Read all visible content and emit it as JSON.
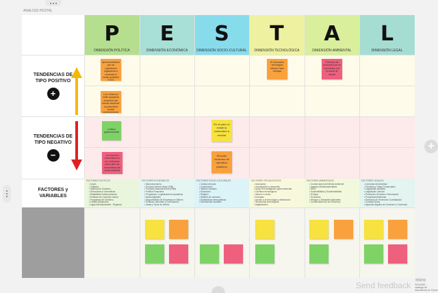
{
  "board": {
    "title": "ANALISIS PESTAL"
  },
  "columns": [
    {
      "letter": "P",
      "dimension": "DIMENSIÓN POLÍTICA",
      "color": "#b5df8f",
      "bg": "#e9f6dd"
    },
    {
      "letter": "E",
      "dimension": "DIMENSIÓN ECONÓMICA",
      "color": "#a8dfd6",
      "bg": "#e4f5f2"
    },
    {
      "letter": "S",
      "dimension": "DIMENSIÓN SOCIO-CULTURAL",
      "color": "#87dcec",
      "bg": "#dcf3f8"
    },
    {
      "letter": "T",
      "dimension": "DIMENSIÓN TECNOLÓGICA",
      "color": "#eef2a0",
      "bg": "#f8f9dc"
    },
    {
      "letter": "A",
      "dimension": "DIMENSIÓN AMBIENTAL",
      "color": "#d9ef9c",
      "bg": "#f1f8dc"
    },
    {
      "letter": "L",
      "dimension": "DIMENSIÓN LEGAL",
      "color": "#a6ddd3",
      "bg": "#e3f4f1"
    }
  ],
  "rows": {
    "positive": {
      "label": "TENDENCIAS DE TIPO POSITIVO",
      "symbol": "+"
    },
    "negative": {
      "label": "TENDENCIAS DE TIPO NEGATIVO",
      "symbol": "−"
    },
    "factors": {
      "label": "FACTORES y VARIABLES"
    }
  },
  "notes": {
    "p1": "Aprovechamiento que los organismos reguladores a conservar el medio ambiente (CEG)",
    "p2": "Los Gobiernos están apoyando proyectos que buscan favorecer a productores locales implementando acciones",
    "t1": "El innovación tecnológica siempre hace ventajas",
    "a1": "El terreno de producción se ha encontrado con la suerte de reciclar",
    "pn1": "Lentitud gubernamental",
    "pn2": "Los recursos económicos no son suficientes para cubrir las necesidades del medio ambiente",
    "s1": "En el país no existe la costumbre a reciclar",
    "s2": "Elevado consumo de utensilios plásticos"
  },
  "factors": [
    {
      "title": "FACTORES POLÍTICOS",
      "items": [
        "Leyes",
        "Tratados",
        "Sistema de Gobierno",
        "Direcciones e Normativas",
        "Estabilidad Gubernamental",
        "Políticas de Comercio Actual",
        "Programas de Gobierno",
        "Límites Aduaneros",
        "Ligas Internacionales - Regional"
      ]
    },
    {
      "title": "FACTORES ECONÓMICOS",
      "items": [
        "Macroeconomía",
        "Producto Interno Bruto (PIB)",
        "Producto Nacional Bruto (PNB)",
        "Política Financiera",
        "Programas / Legislaciones impositivas",
        "Nacionalidades",
        "Disponibilidad de Empresas en Bienes",
        "Políticas Laborales y Contratación",
        "Tasas y Tipos de Interés"
      ]
    },
    {
      "title": "FACTORES SOCIO-CULTURALES",
      "items": [
        "Cultura del país",
        "Costumbres",
        "Valores Sociales",
        "Educación",
        "Religión",
        "Hábitos de consumo",
        "Estadísticas demográficas",
        "Movimientos sociales"
      ]
    },
    {
      "title": "FACTORES TECNOLÓGICOS",
      "items": [
        "Innovación",
        "Investigación y desarrollo",
        "Apoyo a Investigación gubernamental",
        "Cambios tecnológicos",
        "Internet e redes",
        "Energías",
        "Acceso a la tecnología y distribución",
        "Tendencias tecnológicas",
        "Digitalización"
      ]
    },
    {
      "title": "FACTORES AMBIENTALES",
      "items": [
        "Conservación del Medio Ambiente",
        "Agentes Medioambientales",
        "ISOS",
        "Sostenibilidad y Sustentabilidad",
        "El Agua",
        "Productos",
        "Riesgos y Desastres Naturales",
        "Conservación de los Recursos"
      ]
    },
    {
      "title": "FACTORES LEGALES",
      "items": [
        "Licencias de Actividad",
        "Permisos y Tasas Comerciales",
        "Legislación sanitaria",
        "Legislación Laboral",
        "Protección de datos e Información",
        "Propiedad Intelectual",
        "Derechos de Protección Contratación",
        "Contrato Anula",
        "Aspectos legales de Comercio e Comercial"
      ]
    }
  ],
  "footer": {
    "feedback": "Send feedback",
    "brand": "miro",
    "info": "DICHADE\ncatálogo 60\nlaboratorios de Pymes"
  },
  "colors": {
    "yellow": "#f7e23f",
    "orange": "#f9a13c",
    "green": "#7ed266",
    "pink": "#ef5f7e",
    "arrow_up": "#f5b800",
    "arrow_down": "#e02020"
  }
}
